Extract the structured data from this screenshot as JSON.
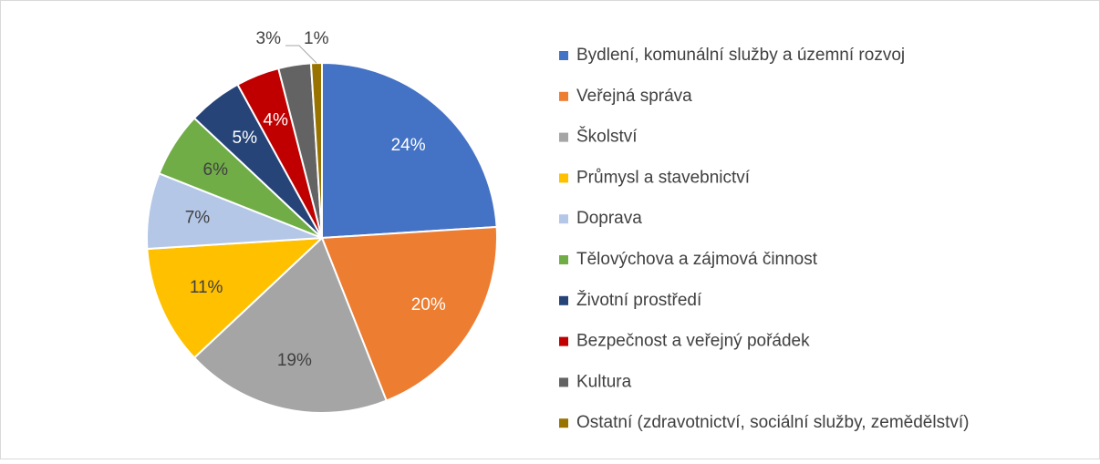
{
  "chart_data": {
    "type": "pie",
    "categories": [
      "Bydlení, komunální služby a územní rozvoj",
      "Veřejná správa",
      "Školství",
      "Průmysl a stavebnictví",
      "Doprava",
      "Tělovýchova a zájmová činnost",
      "Životní prostředí",
      "Bezpečnost a veřejný pořádek",
      "Kultura",
      "Ostatní (zdravotnictví, sociální služby, zemědělství)"
    ],
    "values": [
      24,
      20,
      19,
      11,
      7,
      6,
      5,
      4,
      3,
      1
    ],
    "value_labels": [
      "24%",
      "20%",
      "19%",
      "11%",
      "7%",
      "6%",
      "5%",
      "4%",
      "3%",
      "1%"
    ],
    "colors": [
      "#4472c4",
      "#ed7d31",
      "#a5a5a5",
      "#ffc000",
      "#b4c7e7",
      "#70ad47",
      "#264478",
      "#c00000",
      "#636363",
      "#997300"
    ],
    "label_colors": [
      "#ffffff",
      "#ffffff",
      "#404040",
      "#404040",
      "#404040",
      "#404040",
      "#ffffff",
      "#ffffff",
      "#404040",
      "#404040"
    ],
    "legend": "right"
  }
}
